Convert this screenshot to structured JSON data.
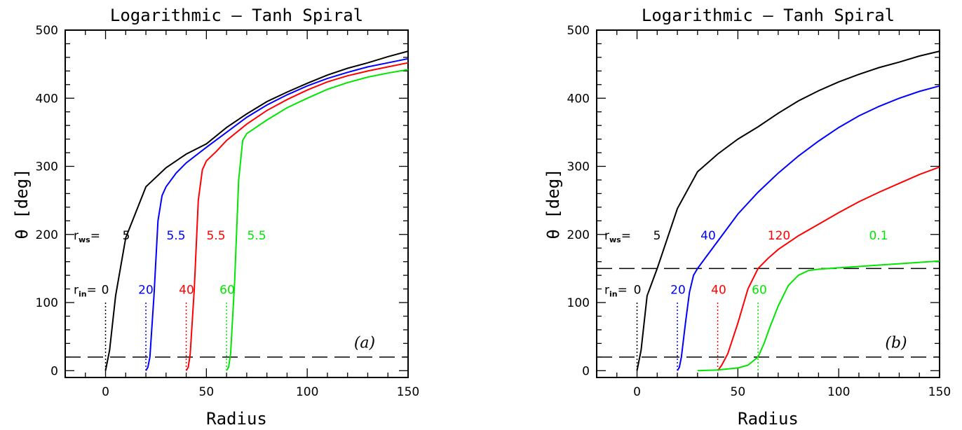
{
  "chart_data": [
    {
      "type": "line",
      "title": "Logarithmic – Tanh Spiral",
      "xlabel": "Radius",
      "ylabel": "θ [deg]",
      "xlim": [
        -20,
        150
      ],
      "ylim": [
        -10,
        500
      ],
      "xticks": [
        "0",
        "50",
        "100",
        "150"
      ],
      "yticks": [
        "0",
        "100",
        "200",
        "300",
        "400",
        "500"
      ],
      "panel_label": "(a)",
      "rws_prefix": "r",
      "rws_sub": "ws",
      "rin_prefix": "r",
      "rin_sub": "in",
      "equals": "=",
      "hlines": [
        20
      ],
      "series": [
        {
          "color": "#000000",
          "r_in": 0,
          "r_in_label": "0",
          "r_ws": 5,
          "r_ws_label": "5",
          "x": [
            0,
            2,
            5,
            10,
            20,
            30,
            40,
            50,
            60,
            70,
            80,
            90,
            100,
            110,
            120,
            130,
            140,
            150
          ],
          "y": [
            0,
            30,
            110,
            195,
            270,
            298,
            318,
            333,
            357,
            377,
            395,
            409,
            422,
            434,
            444,
            452,
            461,
            469
          ]
        },
        {
          "color": "#0000ff",
          "r_in": 20,
          "r_in_label": "20",
          "r_ws": 5.5,
          "r_ws_label": "5.5",
          "x": [
            20,
            21,
            22,
            24,
            26,
            28,
            30,
            35,
            40,
            50,
            60,
            70,
            80,
            90,
            100,
            110,
            120,
            130,
            140,
            150
          ],
          "y": [
            0,
            5,
            20,
            110,
            220,
            257,
            270,
            290,
            305,
            328,
            350,
            372,
            390,
            405,
            418,
            429,
            438,
            446,
            452,
            458
          ]
        },
        {
          "color": "#ff0000",
          "r_in": 40,
          "r_in_label": "40",
          "r_ws": 5.5,
          "r_ws_label": "5.5",
          "x": [
            40,
            41,
            42,
            44,
            46,
            48,
            50,
            55,
            60,
            70,
            80,
            90,
            100,
            110,
            120,
            130,
            140,
            150
          ],
          "y": [
            0,
            5,
            25,
            120,
            250,
            295,
            308,
            322,
            338,
            362,
            382,
            398,
            412,
            424,
            433,
            440,
            446,
            452
          ]
        },
        {
          "color": "#00e600",
          "r_in": 60,
          "r_in_label": "60",
          "r_ws": 5.5,
          "r_ws_label": "5.5",
          "x": [
            60,
            61,
            62,
            64,
            66,
            68,
            70,
            75,
            80,
            90,
            100,
            110,
            120,
            130,
            140,
            150
          ],
          "y": [
            0,
            5,
            25,
            130,
            280,
            338,
            348,
            358,
            368,
            386,
            400,
            413,
            423,
            431,
            437,
            442
          ]
        }
      ]
    },
    {
      "type": "line",
      "title": "Logarithmic – Tanh Spiral",
      "xlabel": "Radius",
      "ylabel": "θ [deg]",
      "xlim": [
        -20,
        150
      ],
      "ylim": [
        -10,
        500
      ],
      "xticks": [
        "0",
        "50",
        "100",
        "150"
      ],
      "yticks": [
        "0",
        "100",
        "200",
        "300",
        "400",
        "500"
      ],
      "panel_label": "(b)",
      "rws_prefix": "r",
      "rws_sub": "ws",
      "rin_prefix": "r",
      "rin_sub": "in",
      "equals": "=",
      "hlines": [
        20,
        150
      ],
      "series": [
        {
          "color": "#000000",
          "r_in": 0,
          "r_in_label": "0",
          "r_ws": 5,
          "r_ws_label": "5",
          "x": [
            0,
            2,
            5,
            10,
            20,
            30,
            40,
            50,
            60,
            70,
            80,
            90,
            100,
            110,
            120,
            130,
            140,
            150
          ],
          "y": [
            0,
            30,
            110,
            150,
            238,
            292,
            318,
            340,
            358,
            378,
            396,
            411,
            424,
            435,
            445,
            453,
            462,
            469
          ]
        },
        {
          "color": "#0000ff",
          "r_in": 20,
          "r_in_label": "20",
          "r_ws": 40,
          "r_ws_label": "40",
          "x": [
            20,
            21,
            22,
            24,
            26,
            28,
            30,
            35,
            40,
            50,
            60,
            70,
            80,
            90,
            100,
            110,
            120,
            130,
            140,
            150
          ],
          "y": [
            0,
            5,
            20,
            70,
            115,
            140,
            150,
            170,
            190,
            230,
            262,
            290,
            315,
            337,
            357,
            374,
            388,
            400,
            410,
            418
          ]
        },
        {
          "color": "#ff0000",
          "r_in": 40,
          "r_in_label": "40",
          "r_ws": 120,
          "r_ws_label": "120",
          "x": [
            40,
            42,
            45,
            50,
            55,
            60,
            65,
            70,
            80,
            90,
            100,
            110,
            120,
            130,
            140,
            150
          ],
          "y": [
            0,
            8,
            25,
            70,
            120,
            150,
            165,
            178,
            198,
            215,
            232,
            248,
            262,
            275,
            288,
            299
          ]
        },
        {
          "color": "#00e600",
          "r_in": 60,
          "r_in_label": "60",
          "r_ws": 0.1,
          "r_ws_label": "0.1",
          "x": [
            30,
            40,
            50,
            55,
            60,
            63,
            66,
            70,
            75,
            80,
            85,
            90,
            95,
            100,
            110,
            120,
            130,
            140,
            150
          ],
          "y": [
            0,
            1,
            4,
            8,
            20,
            40,
            65,
            95,
            125,
            140,
            147,
            149,
            150,
            151,
            153,
            155,
            157,
            159,
            161
          ]
        }
      ]
    }
  ]
}
